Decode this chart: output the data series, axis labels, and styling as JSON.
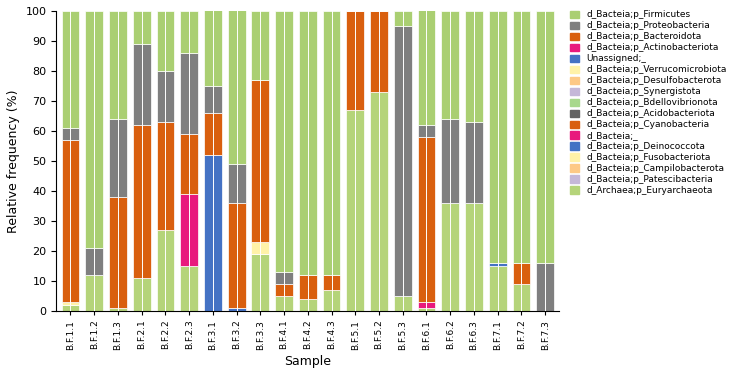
{
  "samples": [
    "B.F.1.1",
    "B.F.1.2",
    "B.F.1.3",
    "B.F.2.1",
    "B.F.2.2",
    "B.F.2.3",
    "B.F.3.1",
    "B.F.3.2",
    "B.F.3.3",
    "B.F.4.1",
    "B.F.4.2",
    "B.F.4.3",
    "B.F.5.1",
    "B.F.5.2",
    "B.F.5.3",
    "B.F.6.1",
    "B.F.6.2",
    "B.F.6.3",
    "B.F.7.1",
    "B.F.7.2",
    "B.F.7.3"
  ],
  "phyla": [
    "d_Bacteia;p_Firmicutes",
    "d_Bacteia;p_Proteobacteria",
    "d_Bacteia;p_Bacteroidota",
    "d_Bacteia;p_Actinobacteriota",
    "Unassigned;_",
    "d_Bacteia;p_Verrucomicrobiota",
    "d_Bacteia;p_Desulfobacterota",
    "d_Bacteia;p_Synergistota",
    "d_Bacteia;p_Bdellovibrionota",
    "d_Bacteia;p_Acidobacteriota",
    "d_Bacteia;p_Cyanobacteria",
    "d_Bacteia;_",
    "d_Bacteia;p_Deinococcota",
    "d_Bacteia;p_Fusobacteriota",
    "d_Bacteia;p_Campilobacterota",
    "d_Bacteia;p_Patescibacteria",
    "d_Archaea;p_Euryarchaeota"
  ],
  "color_map": {
    "d_Bacteia;p_Firmicutes": "#aacf72",
    "d_Bacteia;p_Proteobacteria": "#7f7f7f",
    "d_Bacteia;p_Bacteroidota": "#d95f0e",
    "d_Bacteia;p_Actinobacteriota": "#e8197d",
    "Unassigned;_": "#4472c4",
    "d_Bacteia;p_Verrucomicrobiota": "#fff2a8",
    "d_Bacteia;p_Desulfobacterota": "#fdc986",
    "d_Bacteia;p_Synergistota": "#c5b8d8",
    "d_Bacteia;p_Bdellovibrionota": "#a8d88c",
    "d_Bacteia;p_Acidobacteriota": "#636363",
    "d_Bacteia;p_Cyanobacteria": "#d95f0e",
    "d_Bacteia;_": "#e8197d",
    "d_Bacteia;p_Deinococcota": "#4472c4",
    "d_Bacteia;p_Fusobacteriota": "#fff2a8",
    "d_Bacteia;p_Campilobacterota": "#fdc986",
    "d_Bacteia;p_Patescibacteria": "#c5b8d8",
    "d_Archaea;p_Euryarchaeota": "#b5d47a"
  },
  "data": {
    "d_Bacteia;p_Firmicutes": [
      39,
      79,
      36,
      11,
      20,
      14,
      39,
      52,
      23,
      87,
      88,
      88,
      0,
      0,
      5,
      40,
      36,
      37,
      84,
      84,
      84
    ],
    "d_Bacteia;p_Proteobacteria": [
      4,
      9,
      26,
      27,
      17,
      27,
      9,
      13,
      0,
      4,
      0,
      0,
      0,
      0,
      90,
      4,
      28,
      27,
      0,
      0,
      16
    ],
    "d_Bacteia;p_Bacteroidota": [
      54,
      0,
      37,
      51,
      36,
      20,
      14,
      35,
      54,
      4,
      8,
      5,
      33,
      27,
      0,
      55,
      0,
      0,
      0,
      7,
      0
    ],
    "d_Bacteia;p_Actinobacteriota": [
      0,
      0,
      0,
      0,
      0,
      24,
      0,
      0,
      0,
      0,
      0,
      0,
      0,
      0,
      0,
      0,
      0,
      0,
      0,
      0,
      0
    ],
    "Unassigned;_": [
      0,
      0,
      0,
      0,
      0,
      0,
      52,
      0,
      0,
      0,
      0,
      0,
      0,
      0,
      0,
      0,
      0,
      0,
      0,
      0,
      0
    ],
    "d_Bacteia;p_Verrucomicrobiota": [
      1,
      0,
      0,
      0,
      0,
      0,
      0,
      0,
      4,
      0,
      0,
      0,
      0,
      0,
      0,
      0,
      0,
      0,
      0,
      0,
      0
    ],
    "d_Bacteia;p_Desulfobacterota": [
      0,
      0,
      0,
      0,
      0,
      0,
      0,
      0,
      0,
      0,
      0,
      0,
      0,
      0,
      0,
      0,
      0,
      0,
      0,
      0,
      0
    ],
    "d_Bacteia;p_Synergistota": [
      0,
      0,
      0,
      0,
      0,
      0,
      0,
      0,
      0,
      0,
      0,
      0,
      0,
      0,
      0,
      0,
      0,
      0,
      0,
      0,
      0
    ],
    "d_Bacteia;p_Bdellovibrionota": [
      0,
      0,
      0,
      0,
      0,
      0,
      0,
      0,
      0,
      0,
      0,
      0,
      0,
      0,
      0,
      0,
      0,
      0,
      0,
      0,
      0
    ],
    "d_Bacteia;p_Acidobacteriota": [
      0,
      0,
      0,
      0,
      0,
      0,
      0,
      0,
      0,
      0,
      0,
      0,
      0,
      0,
      0,
      0,
      0,
      0,
      0,
      0,
      0
    ],
    "d_Bacteia;p_Cyanobacteria": [
      0,
      0,
      0,
      0,
      0,
      0,
      0,
      0,
      0,
      0,
      0,
      0,
      0,
      0,
      0,
      0,
      0,
      0,
      0,
      0,
      0
    ],
    "d_Bacteia;_": [
      0,
      0,
      0,
      0,
      0,
      0,
      0,
      0,
      0,
      0,
      0,
      0,
      0,
      0,
      0,
      2,
      0,
      0,
      0,
      0,
      0
    ],
    "d_Bacteia;p_Deinococcota": [
      0,
      0,
      0,
      0,
      0,
      0,
      0,
      1,
      0,
      0,
      0,
      0,
      0,
      0,
      0,
      0,
      0,
      0,
      1,
      0,
      0
    ],
    "d_Bacteia;p_Fusobacteriota": [
      0,
      0,
      0,
      0,
      0,
      0,
      0,
      0,
      0,
      0,
      0,
      0,
      0,
      0,
      0,
      0,
      0,
      0,
      0,
      0,
      0
    ],
    "d_Bacteia;p_Campilobacterota": [
      0,
      0,
      0,
      0,
      0,
      0,
      0,
      0,
      0,
      0,
      0,
      0,
      0,
      0,
      0,
      0,
      0,
      0,
      0,
      0,
      0
    ],
    "d_Bacteia;p_Patescibacteria": [
      0,
      0,
      0,
      0,
      0,
      0,
      0,
      0,
      0,
      0,
      0,
      0,
      0,
      0,
      0,
      0,
      0,
      0,
      0,
      0,
      0
    ],
    "d_Archaea;p_Euryarchaeota": [
      2,
      12,
      1,
      11,
      27,
      15,
      0,
      0,
      19,
      5,
      4,
      7,
      67,
      73,
      5,
      1,
      36,
      36,
      15,
      9,
      0
    ]
  },
  "ylabel": "Relative frequency (%)",
  "xlabel": "Sample",
  "ylim": [
    0,
    100
  ]
}
